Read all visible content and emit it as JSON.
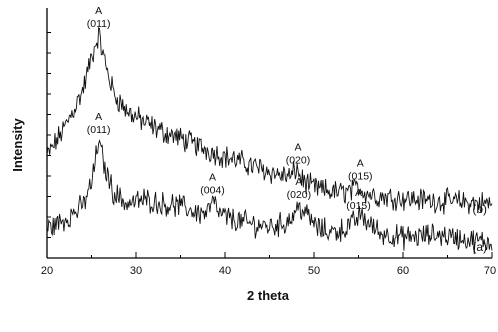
{
  "chart_data": {
    "type": "line",
    "xlabel": "2 theta",
    "ylabel": "Intensity",
    "xlim": [
      20,
      70
    ],
    "xticks": [
      "20",
      "30",
      "40",
      "50",
      "60",
      "70"
    ],
    "yticks_labeled": false,
    "grid": false,
    "series": [
      {
        "name": "(b)",
        "x": [
          20,
          22,
          24,
          25,
          25.8,
          26.5,
          27.5,
          29,
          31,
          33,
          35,
          38,
          40,
          43,
          46,
          47.5,
          48,
          48.6,
          49.5,
          51,
          53,
          54.5,
          55,
          55.6,
          57,
          60,
          63,
          66,
          70
        ],
        "y": [
          4.5,
          5.8,
          7.4,
          8.9,
          9.9,
          8.7,
          7.3,
          6.5,
          6.0,
          5.6,
          5.3,
          4.8,
          4.5,
          4.1,
          3.7,
          3.6,
          4.0,
          3.5,
          3.2,
          3.0,
          2.9,
          3.0,
          3.2,
          2.95,
          2.75,
          2.65,
          2.55,
          2.5,
          2.4
        ]
      },
      {
        "name": "(a)",
        "x": [
          20,
          22,
          24,
          25,
          25.8,
          26.5,
          27.5,
          29,
          31,
          33,
          35,
          37,
          38,
          38.6,
          39.5,
          41,
          43,
          45,
          46.5,
          47.5,
          48.3,
          49.2,
          50.5,
          52,
          53.5,
          54.5,
          55.2,
          56,
          57.5,
          60,
          62,
          64,
          66,
          68,
          70
        ],
        "y": [
          1.3,
          1.7,
          2.3,
          3.3,
          5.2,
          4.0,
          2.9,
          2.4,
          2.6,
          2.4,
          2.3,
          2.0,
          2.0,
          2.5,
          1.9,
          1.7,
          1.5,
          1.4,
          1.5,
          1.8,
          2.3,
          1.9,
          1.3,
          1.15,
          1.3,
          1.6,
          1.9,
          1.6,
          1.1,
          0.9,
          0.95,
          1.05,
          0.9,
          0.75,
          0.7
        ]
      }
    ],
    "annotations": [
      {
        "series": "(b)",
        "x": 25.8,
        "phase": "A",
        "hkl": "(011)"
      },
      {
        "series": "(b)",
        "x": 48.2,
        "phase": "A",
        "hkl": "(020)"
      },
      {
        "series": "(b)",
        "x": 55.2,
        "phase": "A",
        "hkl": "(015)"
      },
      {
        "series": "(a)",
        "x": 25.8,
        "phase": "A",
        "hkl": "(011)"
      },
      {
        "series": "(a)",
        "x": 38.6,
        "phase": "A",
        "hkl": "(004)"
      },
      {
        "series": "(a)",
        "x": 48.3,
        "phase": "A",
        "hkl": "(020)"
      },
      {
        "series": "(a)",
        "x": 55.0,
        "phase": "A",
        "hkl": "(015)"
      }
    ]
  }
}
